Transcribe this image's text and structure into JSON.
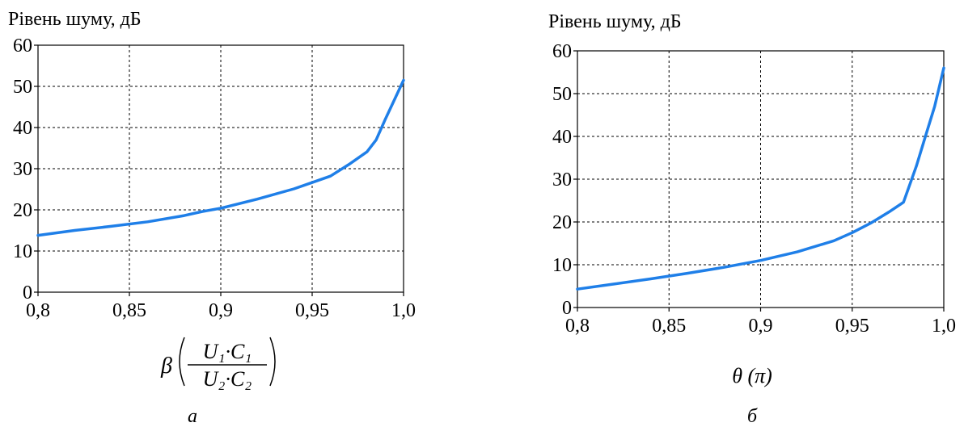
{
  "chart_data": [
    {
      "type": "line",
      "ylabel": "Рівень шуму, дБ",
      "xlabel": "β",
      "xlabel_fraction": {
        "numerator": "U₁·C₁",
        "denominator": "U₂·C₂"
      },
      "panel_label": "а",
      "xlim": [
        0.8,
        1.0
      ],
      "ylim": [
        0,
        60
      ],
      "x_ticks": [
        "0,8",
        "0,85",
        "0,9",
        "0,95",
        "1,0"
      ],
      "y_ticks": [
        "0",
        "10",
        "20",
        "30",
        "40",
        "50",
        "60"
      ],
      "grid": true,
      "line_color": "#1f7fe8",
      "series": [
        {
          "x": [
            0.8,
            0.82,
            0.84,
            0.86,
            0.88,
            0.89,
            0.9,
            0.92,
            0.94,
            0.96,
            0.97,
            0.98,
            0.985,
            0.99,
            1.0
          ],
          "y": [
            13.8,
            15.0,
            16.0,
            17.1,
            18.6,
            19.6,
            20.4,
            22.6,
            25.1,
            28.2,
            31.0,
            34.1,
            37.0,
            42.0,
            51.5
          ]
        }
      ]
    },
    {
      "type": "line",
      "ylabel": "Рівень шуму, дБ",
      "xlabel": "θ (π)",
      "panel_label": "б",
      "xlim": [
        0.8,
        1.0
      ],
      "ylim": [
        0,
        60
      ],
      "x_ticks": [
        "0,8",
        "0,85",
        "0,9",
        "0,95",
        "1,0"
      ],
      "y_ticks": [
        "0",
        "10",
        "20",
        "30",
        "40",
        "50",
        "60"
      ],
      "grid": true,
      "line_color": "#1f7fe8",
      "series": [
        {
          "x": [
            0.8,
            0.82,
            0.84,
            0.86,
            0.88,
            0.9,
            0.92,
            0.94,
            0.95,
            0.96,
            0.97,
            0.978,
            0.985,
            0.99,
            0.995,
            1.0
          ],
          "y": [
            4.3,
            5.5,
            6.7,
            8.0,
            9.4,
            11.0,
            13.0,
            15.6,
            17.5,
            19.7,
            22.3,
            24.6,
            33.0,
            40.0,
            47.0,
            56.0
          ]
        }
      ]
    }
  ]
}
